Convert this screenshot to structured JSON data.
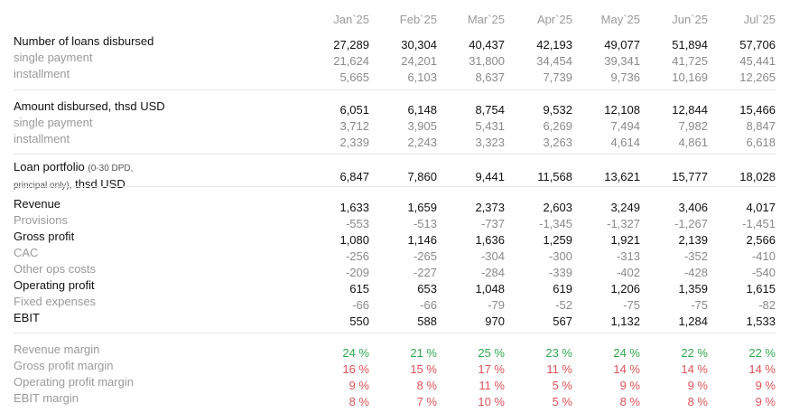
{
  "months": [
    "Jan`25",
    "Feb`25",
    "Mar`25",
    "Apr`25",
    "May`25",
    "Jun`25",
    "Jul`25"
  ],
  "loans": {
    "title": "Number of loans disbursed",
    "values": [
      "27,289",
      "30,304",
      "40,437",
      "42,193",
      "49,077",
      "51,894",
      "57,706"
    ],
    "single_label": "single payment",
    "single": [
      "21,624",
      "24,201",
      "31,800",
      "34,454",
      "39,341",
      "41,725",
      "45,441"
    ],
    "inst_label": "installment",
    "inst": [
      "5,665",
      "6,103",
      "8,637",
      "7,739",
      "9,736",
      "10,169",
      "12,265"
    ]
  },
  "amount": {
    "title": "Amount disbursed, thsd USD",
    "values": [
      "6,051",
      "6,148",
      "8,754",
      "9,532",
      "12,108",
      "12,844",
      "15,466"
    ],
    "single_label": "single payment",
    "single": [
      "3,712",
      "3,905",
      "5,431",
      "6,269",
      "7,494",
      "7,982",
      "8,847"
    ],
    "inst_label": "installment",
    "inst": [
      "2,339",
      "2,243",
      "3,323",
      "3,263",
      "4,614",
      "4,861",
      "6,618"
    ]
  },
  "portfolio": {
    "title_a": "Loan portfolio",
    "note_a": "(0-30 DPD,",
    "note_b": "principal only),",
    "title_b": "thsd USD",
    "values": [
      "6,847",
      "7,860",
      "9,441",
      "11,568",
      "13,621",
      "15,777",
      "18,028"
    ]
  },
  "pnl": [
    {
      "label": "Revenue",
      "kind": "main",
      "values": [
        "1,633",
        "1,659",
        "2,373",
        "2,603",
        "3,249",
        "3,406",
        "4,017"
      ]
    },
    {
      "label": "Provisions",
      "kind": "sub",
      "values": [
        "-553",
        "-513",
        "-737",
        "-1,345",
        "-1,327",
        "-1,267",
        "-1,451"
      ]
    },
    {
      "label": "Gross profit",
      "kind": "main",
      "values": [
        "1,080",
        "1,146",
        "1,636",
        "1,259",
        "1,921",
        "2,139",
        "2,566"
      ]
    },
    {
      "label": "CAC",
      "kind": "sub",
      "values": [
        "-256",
        "-265",
        "-304",
        "-300",
        "-313",
        "-352",
        "-410"
      ]
    },
    {
      "label": "Other ops costs",
      "kind": "sub",
      "values": [
        "-209",
        "-227",
        "-284",
        "-339",
        "-402",
        "-428",
        "-540"
      ]
    },
    {
      "label": "Operating profit",
      "kind": "main",
      "values": [
        "615",
        "653",
        "1,048",
        "619",
        "1,206",
        "1,359",
        "1,615"
      ]
    },
    {
      "label": "Fixed expenses",
      "kind": "sub",
      "values": [
        "-66",
        "-66",
        "-79",
        "-52",
        "-75",
        "-75",
        "-82"
      ]
    },
    {
      "label": "EBIT",
      "kind": "main",
      "values": [
        "550",
        "588",
        "970",
        "567",
        "1,132",
        "1,284",
        "1,533"
      ]
    }
  ],
  "margins": [
    {
      "label": "Revenue margin",
      "color": "#2fa84f",
      "values": [
        "24 %",
        "21 %",
        "25 %",
        "23 %",
        "24 %",
        "22 %",
        "22 %"
      ]
    },
    {
      "label": "Gross profit margin",
      "color": "#e0525a",
      "values": [
        "16 %",
        "15 %",
        "17 %",
        "11 %",
        "14 %",
        "14 %",
        "14 %"
      ]
    },
    {
      "label": "Operating profit margin",
      "color": "#e0525a",
      "values": [
        "9 %",
        "8 %",
        "11 %",
        "5 %",
        "9 %",
        "9 %",
        "9 %"
      ]
    },
    {
      "label": "EBIT margin",
      "color": "#e0525a",
      "values": [
        "8 %",
        "7 %",
        "10 %",
        "5 %",
        "8 %",
        "8 %",
        "9 %"
      ]
    }
  ]
}
